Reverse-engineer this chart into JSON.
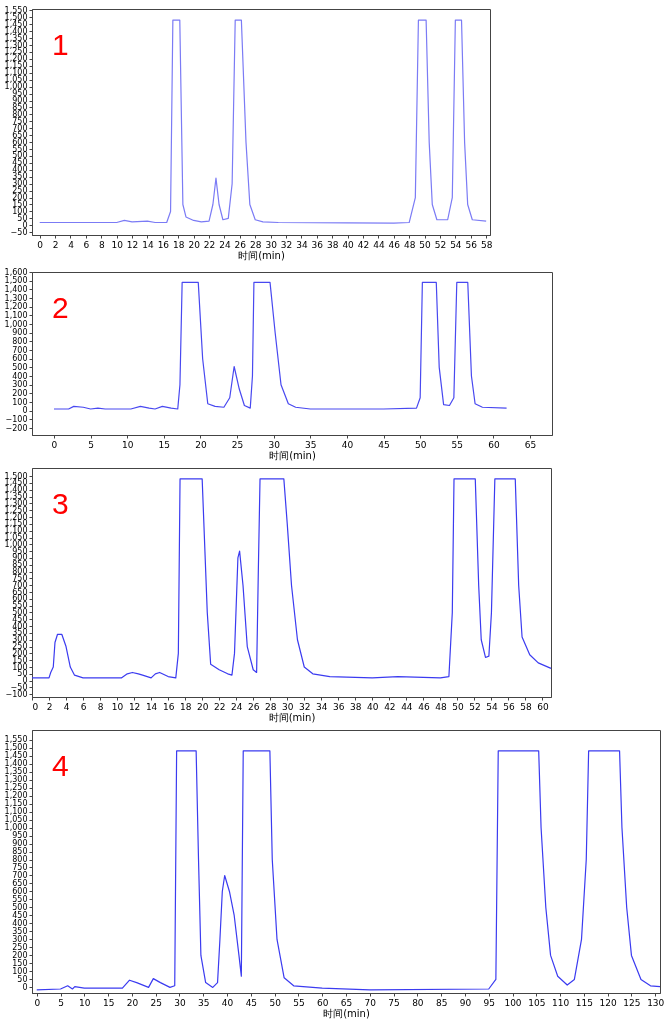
{
  "chart_data": [
    {
      "type": "line",
      "xlabel": "时间(min)",
      "annotations": [
        "1"
      ],
      "grid": false,
      "marker": "none",
      "xlim": [
        -1,
        58.5
      ],
      "ylim": [
        -70,
        1560
      ],
      "xticks": [
        0,
        2,
        4,
        6,
        8,
        10,
        12,
        14,
        16,
        18,
        20,
        22,
        24,
        26,
        28,
        30,
        32,
        34,
        36,
        38,
        40,
        42,
        44,
        46,
        48,
        50,
        52,
        54,
        56,
        58
      ],
      "yticks": [
        -50,
        0,
        50,
        100,
        150,
        200,
        250,
        300,
        350,
        400,
        450,
        500,
        550,
        600,
        650,
        700,
        750,
        800,
        850,
        900,
        950,
        {
          "value": 1000,
          "label": "1,000"
        },
        {
          "value": 1050,
          "label": "1,050"
        },
        {
          "value": 1100,
          "label": "1,100"
        },
        {
          "value": 1150,
          "label": "1,150"
        },
        {
          "value": 1200,
          "label": "1,200"
        },
        {
          "value": 1250,
          "label": "1,250"
        },
        {
          "value": 1300,
          "label": "1,300"
        },
        {
          "value": 1350,
          "label": "1,350"
        },
        {
          "value": 1400,
          "label": "1,400"
        },
        {
          "value": 1450,
          "label": "1,450"
        },
        {
          "value": 1500,
          "label": "1,500"
        },
        {
          "value": 1550,
          "label": "1,550"
        }
      ],
      "x": [
        0,
        10,
        11,
        12,
        14,
        15,
        16.5,
        17,
        17.3,
        18.2,
        18.6,
        19,
        20,
        21,
        22,
        22.5,
        22.9,
        23.3,
        23.8,
        24.5,
        25,
        25.4,
        26.2,
        26.8,
        27.3,
        28,
        29,
        31,
        40,
        46,
        48,
        48.8,
        49.2,
        50.2,
        50.6,
        51,
        51.6,
        53,
        53.6,
        54,
        54.8,
        55.2,
        55.6,
        56.2,
        58
      ],
      "series": [
        {
          "color": "#7b7bf5",
          "values": [
            20,
            20,
            35,
            25,
            30,
            20,
            20,
            100,
            1480,
            1480,
            150,
            60,
            35,
            25,
            30,
            150,
            340,
            150,
            40,
            50,
            300,
            1480,
            1480,
            600,
            150,
            40,
            25,
            20,
            18,
            15,
            20,
            200,
            1480,
            1480,
            600,
            150,
            40,
            40,
            200,
            1480,
            1480,
            600,
            150,
            40,
            30
          ]
        }
      ]
    },
    {
      "type": "line",
      "xlabel": "时间(min)",
      "annotations": [
        "2"
      ],
      "grid": false,
      "marker": "none",
      "xlim": [
        -3,
        68
      ],
      "ylim": [
        -280,
        1600
      ],
      "xticks": [
        0,
        5,
        10,
        15,
        20,
        25,
        30,
        35,
        40,
        45,
        50,
        55,
        60,
        65
      ],
      "yticks": [
        -200,
        -100,
        0,
        100,
        200,
        300,
        400,
        500,
        600,
        700,
        800,
        900,
        {
          "value": 1000,
          "label": "1,000"
        },
        {
          "value": 1100,
          "label": "1,100"
        },
        {
          "value": 1200,
          "label": "1,200"
        },
        {
          "value": 1300,
          "label": "1,300"
        },
        {
          "value": 1400,
          "label": "1,400"
        },
        {
          "value": 1500,
          "label": "1,500"
        },
        {
          "value": 1600,
          "label": "1,600"
        }
      ],
      "x": [
        0,
        2,
        2.7,
        4,
        5,
        6,
        7,
        10.5,
        11.8,
        13,
        13.8,
        14.8,
        16,
        16.9,
        17.2,
        17.5,
        19.7,
        20.3,
        21,
        22,
        23.2,
        24,
        24.6,
        25.3,
        26,
        26.8,
        27.1,
        27.3,
        29.5,
        30.2,
        31,
        32,
        33,
        35,
        45,
        49.5,
        50,
        50.3,
        52.2,
        52.6,
        53.2,
        54,
        54.6,
        55,
        56.5,
        57,
        57.5,
        58.5,
        61.8
      ],
      "series": [
        {
          "color": "#4848f0",
          "values": [
            20,
            20,
            50,
            40,
            20,
            30,
            20,
            20,
            50,
            30,
            20,
            50,
            30,
            20,
            300,
            1480,
            1480,
            600,
            80,
            50,
            40,
            150,
            510,
            250,
            60,
            30,
            400,
            1480,
            1480,
            900,
            300,
            80,
            40,
            20,
            20,
            30,
            150,
            1480,
            1480,
            500,
            70,
            60,
            150,
            1480,
            1480,
            400,
            80,
            40,
            30
          ]
        }
      ]
    },
    {
      "type": "line",
      "xlabel": "时间(min)",
      "annotations": [
        "3"
      ],
      "grid": false,
      "marker": "none",
      "xlim": [
        0,
        61
      ],
      "ylim": [
        -120,
        1560
      ],
      "xticks": [
        0,
        2,
        4,
        6,
        8,
        10,
        12,
        14,
        16,
        18,
        20,
        22,
        24,
        26,
        28,
        30,
        32,
        34,
        36,
        38,
        40,
        42,
        44,
        46,
        48,
        50,
        52,
        54,
        56,
        58,
        60
      ],
      "yticks": [
        -100,
        -50,
        0,
        50,
        100,
        150,
        200,
        250,
        300,
        350,
        400,
        450,
        500,
        550,
        600,
        650,
        700,
        750,
        800,
        850,
        900,
        950,
        {
          "value": 1000,
          "label": "1,000"
        },
        {
          "value": 1050,
          "label": "1,050"
        },
        {
          "value": 1100,
          "label": "1,100"
        },
        {
          "value": 1150,
          "label": "1,150"
        },
        {
          "value": 1200,
          "label": "1,200"
        },
        {
          "value": 1250,
          "label": "1,250"
        },
        {
          "value": 1300,
          "label": "1,300"
        },
        {
          "value": 1350,
          "label": "1,350"
        },
        {
          "value": 1400,
          "label": "1,400"
        },
        {
          "value": 1450,
          "label": "1,450"
        },
        {
          "value": 1500,
          "label": "1,500"
        }
      ],
      "x": [
        0,
        2,
        2.2,
        2.5,
        2.7,
        3,
        3.5,
        4,
        4.5,
        5,
        6,
        10.5,
        11.2,
        11.8,
        12.5,
        13,
        14,
        14.5,
        15,
        16,
        16.9,
        17.2,
        17.4,
        20,
        20.6,
        21,
        22,
        23,
        23.5,
        23.8,
        24.2,
        24.4,
        24.8,
        25.3,
        26,
        26.4,
        26.6,
        26.8,
        29.6,
        30,
        30.5,
        31.2,
        32,
        33,
        35,
        40,
        43,
        48,
        49,
        49.4,
        49.6,
        52.1,
        52.5,
        52.8,
        53.3,
        53.7,
        54,
        54.4,
        56.8,
        57.2,
        57.6,
        58.5,
        59.5,
        61
      ],
      "series": [
        {
          "color": "#3b3bf0",
          "values": [
            20,
            20,
            60,
            100,
            280,
            340,
            340,
            250,
            100,
            40,
            20,
            20,
            50,
            60,
            50,
            40,
            20,
            50,
            60,
            30,
            20,
            200,
            1480,
            1480,
            500,
            120,
            80,
            50,
            40,
            200,
            900,
            950,
            700,
            250,
            80,
            60,
            800,
            1480,
            1480,
            1150,
            700,
            300,
            100,
            50,
            30,
            20,
            30,
            20,
            30,
            500,
            1480,
            1480,
            700,
            300,
            170,
            180,
            500,
            1480,
            1480,
            700,
            320,
            190,
            130,
            90
          ]
        }
      ]
    },
    {
      "type": "line",
      "xlabel": "时间(min)",
      "annotations": [
        "4"
      ],
      "grid": false,
      "marker": "none",
      "xlim": [
        -1,
        131
      ],
      "ylim": [
        -35,
        1610
      ],
      "xticks": [
        0,
        5,
        10,
        15,
        20,
        25,
        30,
        35,
        40,
        45,
        50,
        55,
        60,
        65,
        70,
        75,
        80,
        85,
        90,
        95,
        100,
        105,
        110,
        115,
        120,
        125,
        130
      ],
      "yticks": [
        0,
        50,
        100,
        150,
        200,
        250,
        300,
        350,
        400,
        450,
        500,
        550,
        600,
        650,
        700,
        750,
        800,
        850,
        900,
        950,
        {
          "value": 1000,
          "label": "1,000"
        },
        {
          "value": 1050,
          "label": "1,050"
        },
        {
          "value": 1100,
          "label": "1,100"
        },
        {
          "value": 1150,
          "label": "1,150"
        },
        {
          "value": 1200,
          "label": "1,200"
        },
        {
          "value": 1250,
          "label": "1,250"
        },
        {
          "value": 1300,
          "label": "1,300"
        },
        {
          "value": 1350,
          "label": "1,350"
        },
        {
          "value": 1400,
          "label": "1,400"
        },
        {
          "value": 1450,
          "label": "1,450"
        },
        {
          "value": 1500,
          "label": "1,500"
        },
        {
          "value": 1550,
          "label": "1,550"
        }
      ],
      "x": [
        0,
        5,
        6.5,
        7.5,
        8,
        10,
        18,
        19.5,
        21,
        23.5,
        24.5,
        26,
        28,
        29,
        29.4,
        33.5,
        34,
        34.5,
        35.5,
        37,
        38,
        38.5,
        39,
        39.5,
        40.5,
        41.5,
        42.5,
        43,
        43.4,
        49,
        49.5,
        50.5,
        52,
        54,
        60,
        70,
        95,
        96.5,
        97,
        105.5,
        106,
        107,
        108,
        109.5,
        111.5,
        113,
        114.5,
        115.5,
        116,
        122.5,
        123,
        124,
        125,
        127,
        129,
        131
      ],
      "series": [
        {
          "color": "#3b3bf0",
          "values": [
            -15,
            -10,
            10,
            -10,
            5,
            -5,
            -5,
            45,
            30,
            0,
            55,
            30,
            0,
            10,
            1480,
            1480,
            800,
            200,
            30,
            0,
            30,
            300,
            600,
            700,
            600,
            450,
            200,
            70,
            1480,
            1480,
            800,
            300,
            60,
            10,
            -5,
            -15,
            -10,
            50,
            1480,
            1480,
            1000,
            500,
            200,
            70,
            15,
            50,
            300,
            800,
            1480,
            1480,
            1000,
            500,
            200,
            50,
            10,
            5
          ]
        }
      ]
    }
  ]
}
